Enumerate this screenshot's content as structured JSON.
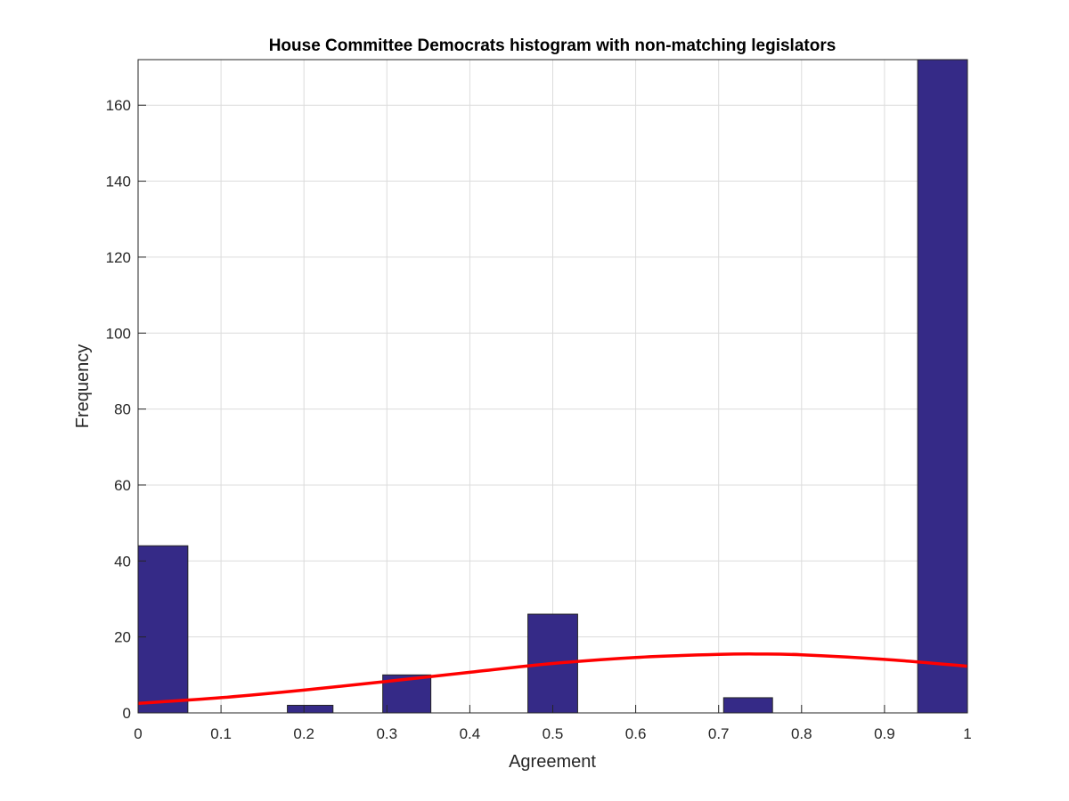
{
  "chart_data": {
    "type": "bar",
    "title": "House Committee Democrats histogram with non-matching legislators",
    "xlabel": "Agreement",
    "ylabel": "Frequency",
    "xlim": [
      0,
      1
    ],
    "ylim": [
      0,
      172
    ],
    "x_ticks": [
      "0",
      "0.1",
      "0.2",
      "0.3",
      "0.4",
      "0.5",
      "0.6",
      "0.7",
      "0.8",
      "0.9",
      "1"
    ],
    "y_ticks": [
      "0",
      "20",
      "40",
      "60",
      "80",
      "100",
      "120",
      "140",
      "160"
    ],
    "grid": true,
    "bar_color": "#352a87",
    "bar_edge_color": "#262626",
    "bins": [
      {
        "x0": 0.0,
        "x1": 0.06,
        "value": 44
      },
      {
        "x0": 0.18,
        "x1": 0.235,
        "value": 2
      },
      {
        "x0": 0.295,
        "x1": 0.353,
        "value": 10
      },
      {
        "x0": 0.47,
        "x1": 0.53,
        "value": 26
      },
      {
        "x0": 0.706,
        "x1": 0.765,
        "value": 4
      },
      {
        "x0": 0.94,
        "x1": 1.0,
        "value": 172
      }
    ],
    "fit_curve": {
      "color": "#ff0000",
      "points": [
        [
          0.0,
          2.5
        ],
        [
          0.1,
          4.0
        ],
        [
          0.2,
          6.0
        ],
        [
          0.3,
          8.3
        ],
        [
          0.4,
          10.7
        ],
        [
          0.5,
          13.0
        ],
        [
          0.6,
          14.6
        ],
        [
          0.7,
          15.4
        ],
        [
          0.75,
          15.5
        ],
        [
          0.8,
          15.3
        ],
        [
          0.9,
          14.1
        ],
        [
          1.0,
          12.3
        ]
      ]
    }
  }
}
